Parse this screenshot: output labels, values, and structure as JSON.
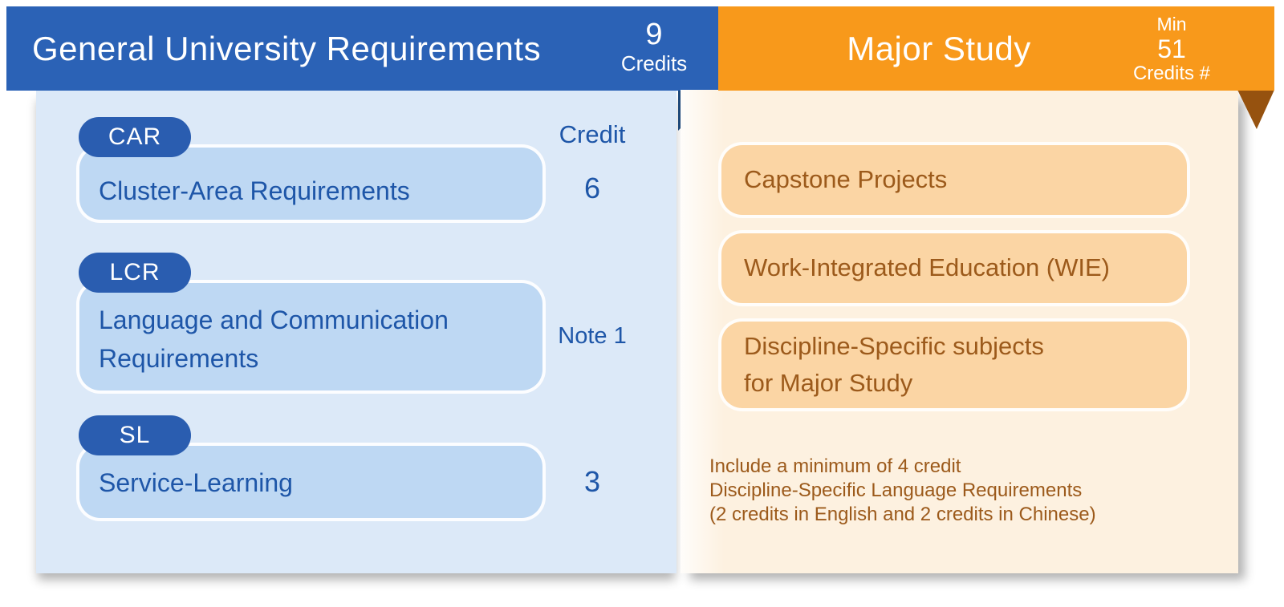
{
  "palette": {
    "header_blue": "#2B62B6",
    "badge_blue": "#2A5DB0",
    "fold_navy": "#1E4879",
    "panel_blue": "#DCE9F8",
    "card_blue": "#BED8F3",
    "text_blue": "#1E56A8",
    "header_orange": "#F8991B",
    "fold_brown": "#96520F",
    "panel_cream": "#FDF1E0",
    "card_orange": "#FBD5A4",
    "text_brown": "#9C5A1B"
  },
  "general": {
    "title": "General University Requirements",
    "credits_value": "9",
    "credits_label": "Credits",
    "column_header": "Credit",
    "rows": [
      {
        "badge": "CAR",
        "title": "Cluster-Area Requirements",
        "credit": "6"
      },
      {
        "badge": "LCR",
        "title": "Language and Communication\nRequirements",
        "credit": "Note 1"
      },
      {
        "badge": "SL",
        "title": "Service-Learning",
        "credit": "3"
      }
    ]
  },
  "major": {
    "title": "Major Study",
    "credits_min_label": "Min",
    "credits_value": "51",
    "credits_label": "Credits #",
    "cards": [
      "Capstone Projects",
      "Work-Integrated Education (WIE)",
      "Discipline-Specific subjects\nfor Major Study"
    ],
    "note_lines": [
      "Include a minimum of 4 credit",
      "Discipline-Specific Language Requirements",
      "(2 credits in English and 2 credits in Chinese)"
    ]
  }
}
